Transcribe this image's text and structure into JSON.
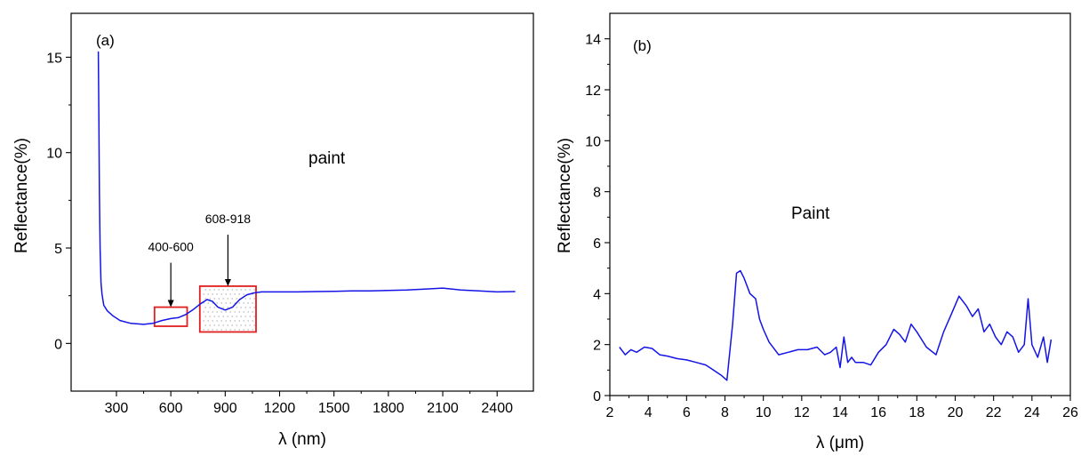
{
  "chart_data": [
    {
      "type": "line",
      "panel_label": "(a)",
      "annotation": "paint",
      "xlabel": "λ (nm)",
      "ylabel": "Reflectance(%)",
      "xlim": [
        50,
        2600
      ],
      "ylim": [
        -2.5,
        17.3
      ],
      "xticks": [
        300,
        600,
        900,
        1200,
        1500,
        1800,
        2100,
        2400
      ],
      "yticks": [
        0,
        5,
        10,
        15
      ],
      "grid": false,
      "series": [
        {
          "x": [
            200,
            203,
            206,
            210,
            215,
            220,
            230,
            250,
            280,
            320,
            380,
            450,
            500,
            550,
            600,
            640,
            680,
            720,
            760,
            800,
            830,
            860,
            900,
            940,
            980,
            1020,
            1060,
            1100,
            1150,
            1200,
            1300,
            1400,
            1500,
            1600,
            1700,
            1800,
            1900,
            2000,
            2100,
            2200,
            2300,
            2400,
            2500
          ],
          "y": [
            15.3,
            12.0,
            8.0,
            5.0,
            3.2,
            2.6,
            2.0,
            1.7,
            1.45,
            1.2,
            1.05,
            1.0,
            1.05,
            1.2,
            1.3,
            1.35,
            1.5,
            1.75,
            2.05,
            2.3,
            2.2,
            1.9,
            1.75,
            1.9,
            2.3,
            2.55,
            2.65,
            2.7,
            2.7,
            2.7,
            2.7,
            2.72,
            2.73,
            2.75,
            2.75,
            2.78,
            2.8,
            2.85,
            2.9,
            2.8,
            2.75,
            2.7,
            2.72
          ]
        }
      ],
      "highlight_boxes": [
        {
          "label": "400-600",
          "x_range": [
            510,
            690
          ],
          "y_range": [
            0.9,
            1.9
          ]
        },
        {
          "label": "608-918",
          "x_range": [
            760,
            1070
          ],
          "y_range": [
            0.6,
            3.0
          ]
        }
      ]
    },
    {
      "type": "line",
      "panel_label": "(b)",
      "annotation": "Paint",
      "xlabel": "λ (μm)",
      "ylabel": "Reflectance(%)",
      "xlim": [
        2,
        26
      ],
      "ylim": [
        0,
        15
      ],
      "xticks": [
        2,
        4,
        6,
        8,
        10,
        12,
        14,
        16,
        18,
        20,
        22,
        24,
        26
      ],
      "yticks": [
        0,
        2,
        4,
        6,
        8,
        10,
        12,
        14
      ],
      "grid": false,
      "series": [
        {
          "x": [
            2.5,
            2.8,
            3.1,
            3.4,
            3.8,
            4.2,
            4.6,
            5.0,
            5.5,
            6.0,
            6.5,
            7.0,
            7.4,
            7.8,
            8.1,
            8.4,
            8.6,
            8.8,
            9.0,
            9.3,
            9.6,
            9.8,
            10.0,
            10.3,
            10.8,
            11.3,
            11.8,
            12.3,
            12.8,
            13.2,
            13.5,
            13.8,
            14.0,
            14.2,
            14.4,
            14.6,
            14.8,
            15.2,
            15.6,
            16.0,
            16.4,
            16.8,
            17.1,
            17.4,
            17.7,
            18.0,
            18.5,
            19.0,
            19.4,
            19.8,
            20.2,
            20.6,
            20.9,
            21.2,
            21.5,
            21.8,
            22.1,
            22.4,
            22.7,
            23.0,
            23.3,
            23.6,
            23.8,
            24.0,
            24.3,
            24.6,
            24.8,
            25.0
          ],
          "y": [
            1.9,
            1.6,
            1.8,
            1.7,
            1.9,
            1.85,
            1.6,
            1.55,
            1.45,
            1.4,
            1.3,
            1.2,
            1.0,
            0.8,
            0.6,
            2.8,
            4.8,
            4.9,
            4.6,
            4.0,
            3.8,
            3.0,
            2.6,
            2.1,
            1.6,
            1.7,
            1.8,
            1.8,
            1.9,
            1.6,
            1.7,
            1.9,
            1.1,
            2.3,
            1.3,
            1.5,
            1.3,
            1.3,
            1.2,
            1.7,
            2.0,
            2.6,
            2.4,
            2.1,
            2.8,
            2.5,
            1.9,
            1.6,
            2.5,
            3.2,
            3.9,
            3.5,
            3.1,
            3.4,
            2.5,
            2.8,
            2.3,
            2.0,
            2.5,
            2.3,
            1.7,
            2.0,
            3.8,
            2.0,
            1.5,
            2.3,
            1.3,
            2.2
          ]
        }
      ]
    }
  ]
}
